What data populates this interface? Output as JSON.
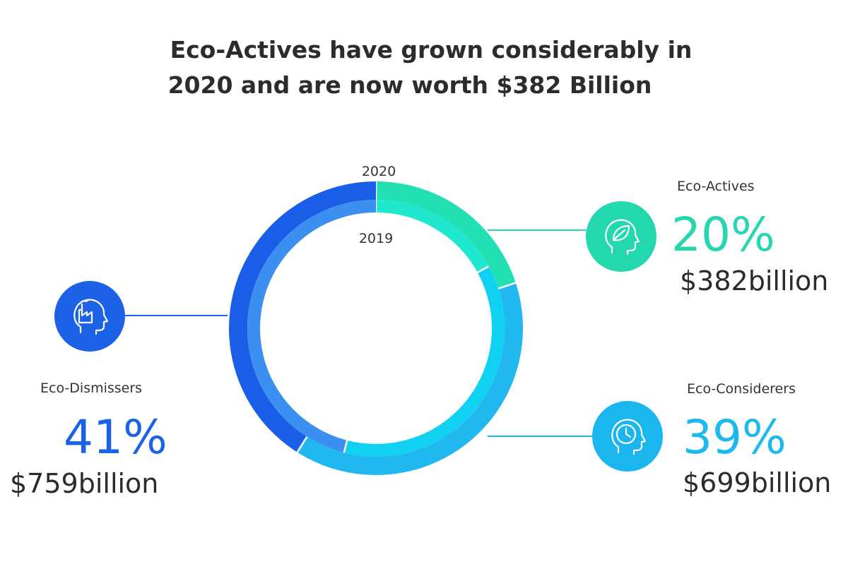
{
  "title_line1": "Eco-Actives have grown considerably in",
  "title_line2": "2020 and are now worth $382 Billion",
  "chart_data": {
    "type": "pie",
    "style": "double-donut",
    "rings": [
      {
        "name": "2020",
        "position": "outer",
        "categories": [
          "Eco-Actives",
          "Eco-Considerers",
          "Eco-Dismissers"
        ],
        "values": [
          20,
          39,
          41
        ]
      },
      {
        "name": "2019",
        "position": "inner",
        "categories": [
          "Eco-Actives",
          "Eco-Considerers",
          "Eco-Dismissers"
        ],
        "values": [
          17,
          37,
          46
        ]
      }
    ],
    "segments": [
      {
        "name": "Eco-Actives",
        "percent_2020": "20%",
        "value_2020": "$382billion",
        "color_outer": "#22e0b4",
        "color_inner": "#1fe8cf",
        "icon": "leaf-head-icon",
        "side": "right"
      },
      {
        "name": "Eco-Considerers",
        "percent_2020": "39%",
        "value_2020": "$699billion",
        "color_outer": "#20b8ef",
        "color_inner": "#11d1f2",
        "icon": "clock-head-icon",
        "side": "right"
      },
      {
        "name": "Eco-Dismissers",
        "percent_2020": "41%",
        "value_2020": "$759billion",
        "color_outer": "#1a5ee8",
        "color_inner": "#3b8ff0",
        "icon": "factory-head-icon",
        "side": "left"
      }
    ],
    "label_colors": {
      "Eco-Actives": "#26d6ae",
      "Eco-Considerers": "#1cb9ee",
      "Eco-Dismissers": "#1b62e6"
    }
  }
}
